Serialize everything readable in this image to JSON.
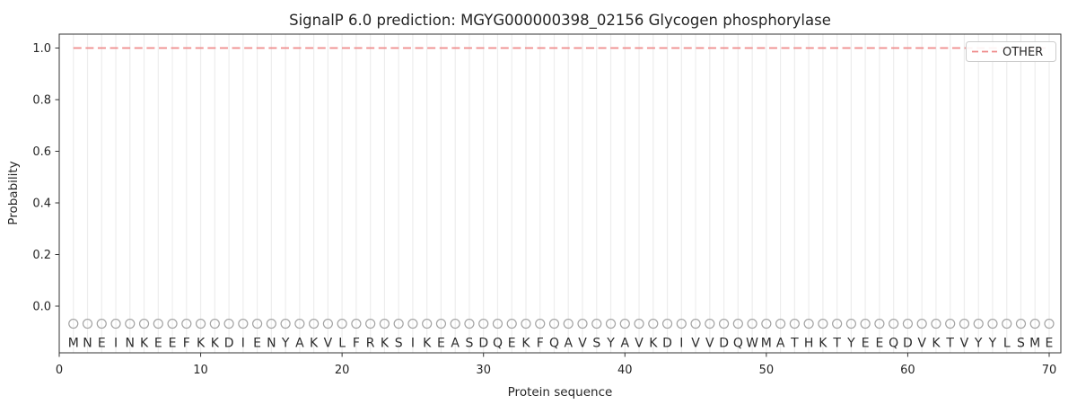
{
  "figure": {
    "title": "SignalP 6.0 prediction: MGYG000000398_02156 Glycogen phosphorylase",
    "colors": {
      "other_line": "#ef8a8a",
      "grid": "#ededed",
      "marker_stroke": "#a3a3a3",
      "spine": "#333333",
      "text": "#262626",
      "legend_border": "#cccccc",
      "background": "#ffffff"
    }
  },
  "chart_data": {
    "type": "line",
    "title": "SignalP 6.0 prediction: MGYG000000398_02156 Glycogen phosphorylase",
    "xlabel": "Protein sequence",
    "ylabel": "Probability",
    "xlim": [
      0,
      70.8
    ],
    "ylim": [
      -0.18,
      1.054
    ],
    "xticks": [
      0,
      10,
      20,
      30,
      40,
      50,
      60,
      70
    ],
    "yticks": [
      0.0,
      0.2,
      0.4,
      0.6,
      0.8,
      1.0
    ],
    "grid": "vertical gridline at every residue position 1-70, no horizontal gridlines",
    "legend": {
      "position": "upper right",
      "entries": [
        {
          "label": "OTHER",
          "line_style": "dashed",
          "color": "#ef8a8a"
        }
      ]
    },
    "series": [
      {
        "name": "OTHER",
        "x_start": 1,
        "x_end": 70,
        "values": [
          1,
          1,
          1,
          1,
          1,
          1,
          1,
          1,
          1,
          1,
          1,
          1,
          1,
          1,
          1,
          1,
          1,
          1,
          1,
          1,
          1,
          1,
          1,
          1,
          1,
          1,
          1,
          1,
          1,
          1,
          1,
          1,
          1,
          1,
          1,
          1,
          1,
          1,
          1,
          1,
          1,
          1,
          1,
          1,
          1,
          1,
          1,
          1,
          1,
          1,
          1,
          1,
          1,
          1,
          1,
          1,
          1,
          1,
          1,
          1,
          1,
          1,
          1,
          1,
          1,
          1,
          1,
          1,
          1,
          1
        ]
      }
    ],
    "sequence": "MNEINKEEFKKDIENYAKVLFRKSIKEASDQEKFQAVSYAVKDIVVDQWMATHKTYEEQDVKTVYYLSME",
    "sequence_marker": "open circle above each residue letter at y≈-0.07",
    "marker_y": -0.068,
    "letter_y": -0.141
  }
}
